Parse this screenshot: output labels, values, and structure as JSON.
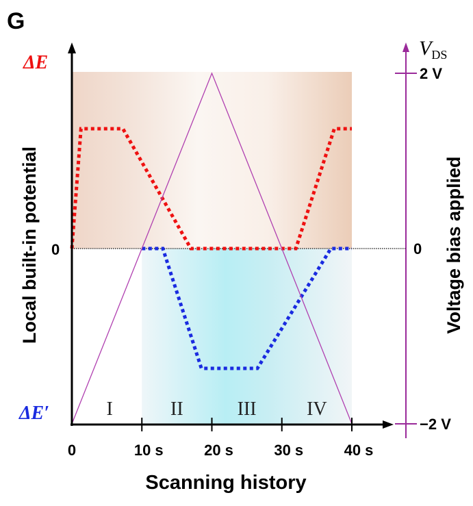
{
  "panel_label": "G",
  "chart_data": {
    "type": "line",
    "title": "",
    "xlabel": "Scanning history",
    "ylabel_left": "Local built-in potential",
    "ylabel_right": "Voltage bias applied",
    "xlim": [
      0,
      40
    ],
    "x_ticks": [
      {
        "value": 0,
        "label": "0"
      },
      {
        "value": 10,
        "label": "10 s"
      },
      {
        "value": 20,
        "label": "20 s"
      },
      {
        "value": 30,
        "label": "30 s"
      },
      {
        "value": 40,
        "label": "40 s"
      }
    ],
    "left_axis": {
      "top_label": "ΔE",
      "bottom_label": "ΔE′",
      "zero_label": "0",
      "ylim": [
        -1,
        1
      ]
    },
    "right_axis": {
      "title": "V",
      "title_sub": "DS",
      "ylim": [
        -2,
        2
      ],
      "ticks": [
        {
          "value": 2,
          "label": "2 V"
        },
        {
          "value": 0,
          "label": "0"
        },
        {
          "value": -2,
          "label": "−2 V"
        }
      ]
    },
    "regions": [
      {
        "label": "I",
        "x": [
          0,
          10
        ]
      },
      {
        "label": "II",
        "x": [
          10,
          20
        ]
      },
      {
        "label": "III",
        "x": [
          20,
          30
        ]
      },
      {
        "label": "IV",
        "x": [
          30,
          40
        ]
      }
    ],
    "series": [
      {
        "name": "ΔE",
        "axis": "left",
        "style": "dotted",
        "color": "#ee1111",
        "x": [
          0,
          1.3,
          7.3,
          17,
          32,
          37.5,
          40
        ],
        "y": [
          0,
          0.7,
          0.7,
          0,
          0,
          0.7,
          0.7
        ]
      },
      {
        "name": "ΔE′",
        "axis": "left",
        "style": "dotted",
        "color": "#1a2be0",
        "x": [
          10,
          13,
          18.5,
          26.5,
          37,
          40
        ],
        "y": [
          0,
          0,
          -0.7,
          -0.7,
          0,
          0
        ]
      },
      {
        "name": "VDS",
        "axis": "right",
        "style": "solid",
        "color": "#b040b0",
        "x": [
          0,
          20,
          40
        ],
        "y": [
          -2,
          2,
          -2
        ]
      }
    ],
    "colors": {
      "delta_e": "#ee1111",
      "delta_e_prime": "#1a2be0",
      "vds": "#9a2a9a"
    }
  }
}
